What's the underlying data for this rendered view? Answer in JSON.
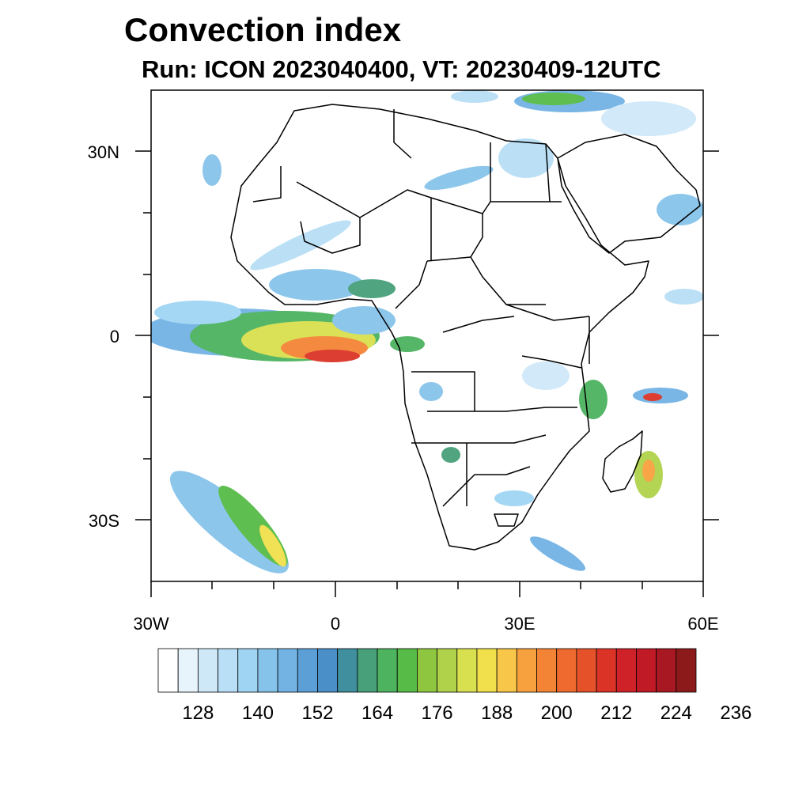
{
  "title": "Convection index",
  "subtitle": "Run: ICON 2023040400,  VT: 20230409-12UTC",
  "latitude_labels": [
    "30N",
    "0",
    "30S"
  ],
  "longitude_labels": [
    "30W",
    "0",
    "30E",
    "60E"
  ],
  "colorbar": {
    "colors": [
      "#ffffff",
      "#e8f4fc",
      "#cfe8f8",
      "#b8dff6",
      "#9fd5f3",
      "#86c3ea",
      "#72b3e4",
      "#5c9fd6",
      "#4a8fc8",
      "#3f8f9e",
      "#47a07a",
      "#4db35f",
      "#56bb47",
      "#8ec73f",
      "#b0d24a",
      "#d8e04f",
      "#f1e04b",
      "#f8c648",
      "#f7a13e",
      "#f48435",
      "#ee6a2e",
      "#e55229",
      "#db3427",
      "#cf2128",
      "#bf1a26",
      "#a81822",
      "#8c1a1a"
    ],
    "tick_labels": [
      "128",
      "140",
      "152",
      "164",
      "176",
      "188",
      "200",
      "212",
      "224",
      "236"
    ]
  }
}
